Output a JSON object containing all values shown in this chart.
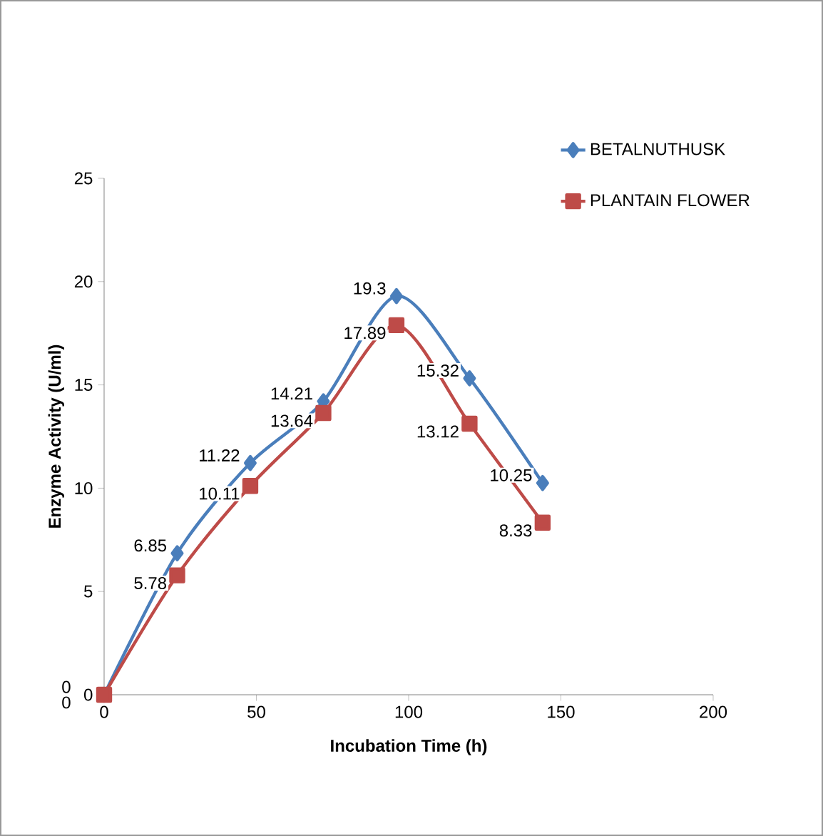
{
  "chart_data": {
    "type": "line",
    "xlabel": "Incubation Time (h)",
    "ylabel": "Enzyme Activity (U/ml)",
    "x": [
      0,
      24,
      48,
      72,
      96,
      120,
      144
    ],
    "series": [
      {
        "name": "BETALNUTHUSK",
        "color": "#4a7ebb",
        "marker": "diamond",
        "values": [
          0,
          6.85,
          11.22,
          14.21,
          19.3,
          15.32,
          10.25
        ]
      },
      {
        "name": "PLANTAIN FLOWER",
        "color": "#be4b48",
        "marker": "square",
        "values": [
          0,
          5.78,
          10.11,
          13.64,
          17.89,
          13.12,
          8.33
        ]
      }
    ],
    "xlim": [
      0,
      200
    ],
    "xticks": [
      0,
      50,
      100,
      150,
      200
    ],
    "ylim": [
      0,
      25
    ],
    "yticks": [
      0,
      5,
      10,
      15,
      20,
      25
    ],
    "grid": false,
    "legend": "top right",
    "data_labels": true
  }
}
